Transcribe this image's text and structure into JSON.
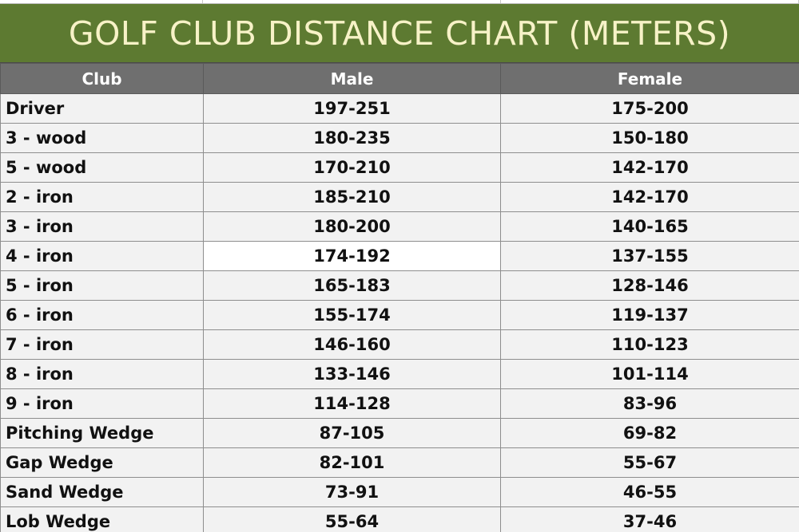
{
  "title": "GOLF CLUB DISTANCE CHART (METERS)",
  "accent_color": "#5d7a31",
  "title_text_color": "#f7f2c7",
  "header_color": "#6f6f6f",
  "columns": {
    "club": "Club",
    "male": "Male",
    "female": "Female"
  },
  "rows": [
    {
      "club": "Driver",
      "male": "197-251",
      "female": "175-200"
    },
    {
      "club": "3 - wood",
      "male": "180-235",
      "female": "150-180"
    },
    {
      "club": "5 - wood",
      "male": "170-210",
      "female": "142-170"
    },
    {
      "club": "2 - iron",
      "male": "185-210",
      "female": "142-170"
    },
    {
      "club": "3 - iron",
      "male": "180-200",
      "female": "140-165"
    },
    {
      "club": "4 - iron",
      "male": "174-192",
      "female": "137-155"
    },
    {
      "club": "5 - iron",
      "male": "165-183",
      "female": "128-146"
    },
    {
      "club": "6 - iron",
      "male": "155-174",
      "female": "119-137"
    },
    {
      "club": "7 - iron",
      "male": "146-160",
      "female": "110-123"
    },
    {
      "club": "8 - iron",
      "male": "133-146",
      "female": "101-114"
    },
    {
      "club": "9 - iron",
      "male": "114-128",
      "female": "83-96"
    },
    {
      "club": "Pitching Wedge",
      "male": "87-105",
      "female": "69-82"
    },
    {
      "club": "Gap Wedge",
      "male": "82-101",
      "female": "55-67"
    },
    {
      "club": "Sand Wedge",
      "male": "73-91",
      "female": "46-55"
    },
    {
      "club": "Lob Wedge",
      "male": "55-64",
      "female": "37-46"
    }
  ]
}
